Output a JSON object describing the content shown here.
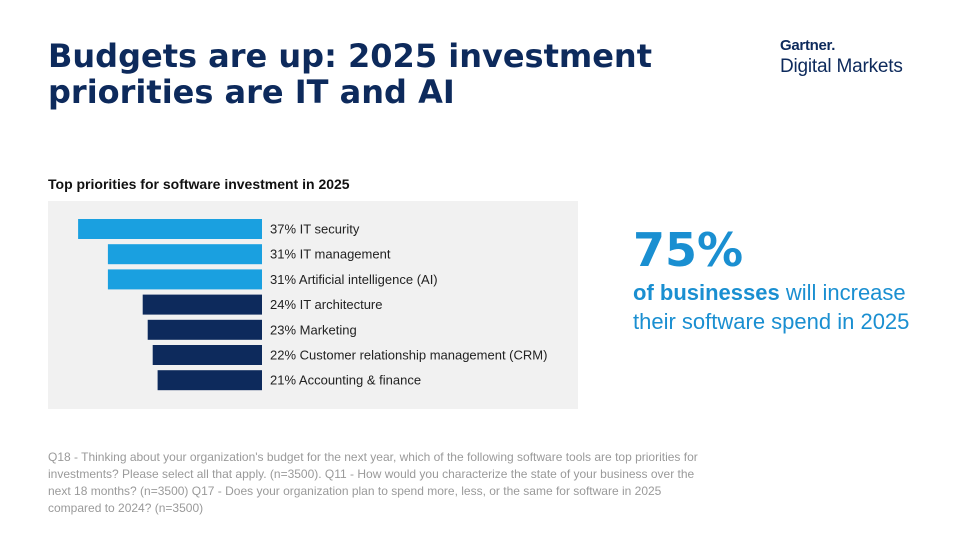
{
  "title": "Budgets are up: 2025 investment priorities are IT and AI",
  "logo": {
    "top": "Gartner.",
    "bottom": "Digital Markets"
  },
  "chart_data": {
    "type": "bar",
    "orientation": "horizontal",
    "title": "Top priorities for software investment in 2025",
    "categories": [
      "IT security",
      "IT management",
      "Artificial intelligence (AI)",
      "IT architecture",
      "Marketing",
      "Customer relationship management (CRM)",
      "Accounting & finance"
    ],
    "values": [
      37,
      31,
      31,
      24,
      23,
      22,
      21
    ],
    "unit": "%",
    "colors": [
      "#1aa0e0",
      "#1aa0e0",
      "#1aa0e0",
      "#0d2a5c",
      "#0d2a5c",
      "#0d2a5c",
      "#0d2a5c"
    ],
    "grid": false,
    "legend": "none"
  },
  "stat": {
    "big": "75%",
    "strong": "of businesses",
    "rest": " will increase their software spend in 2025"
  },
  "footnote": "Q18 - Thinking about your organization's budget for the next year, which of the following software tools are top priorities for investments? Please select all that apply. (n=3500). Q11 - How would you characterize the state of your business over the next 18 months? (n=3500) Q17 - Does your organization plan to spend more, less, or the same for software in 2025 compared to 2024? (n=3500)"
}
